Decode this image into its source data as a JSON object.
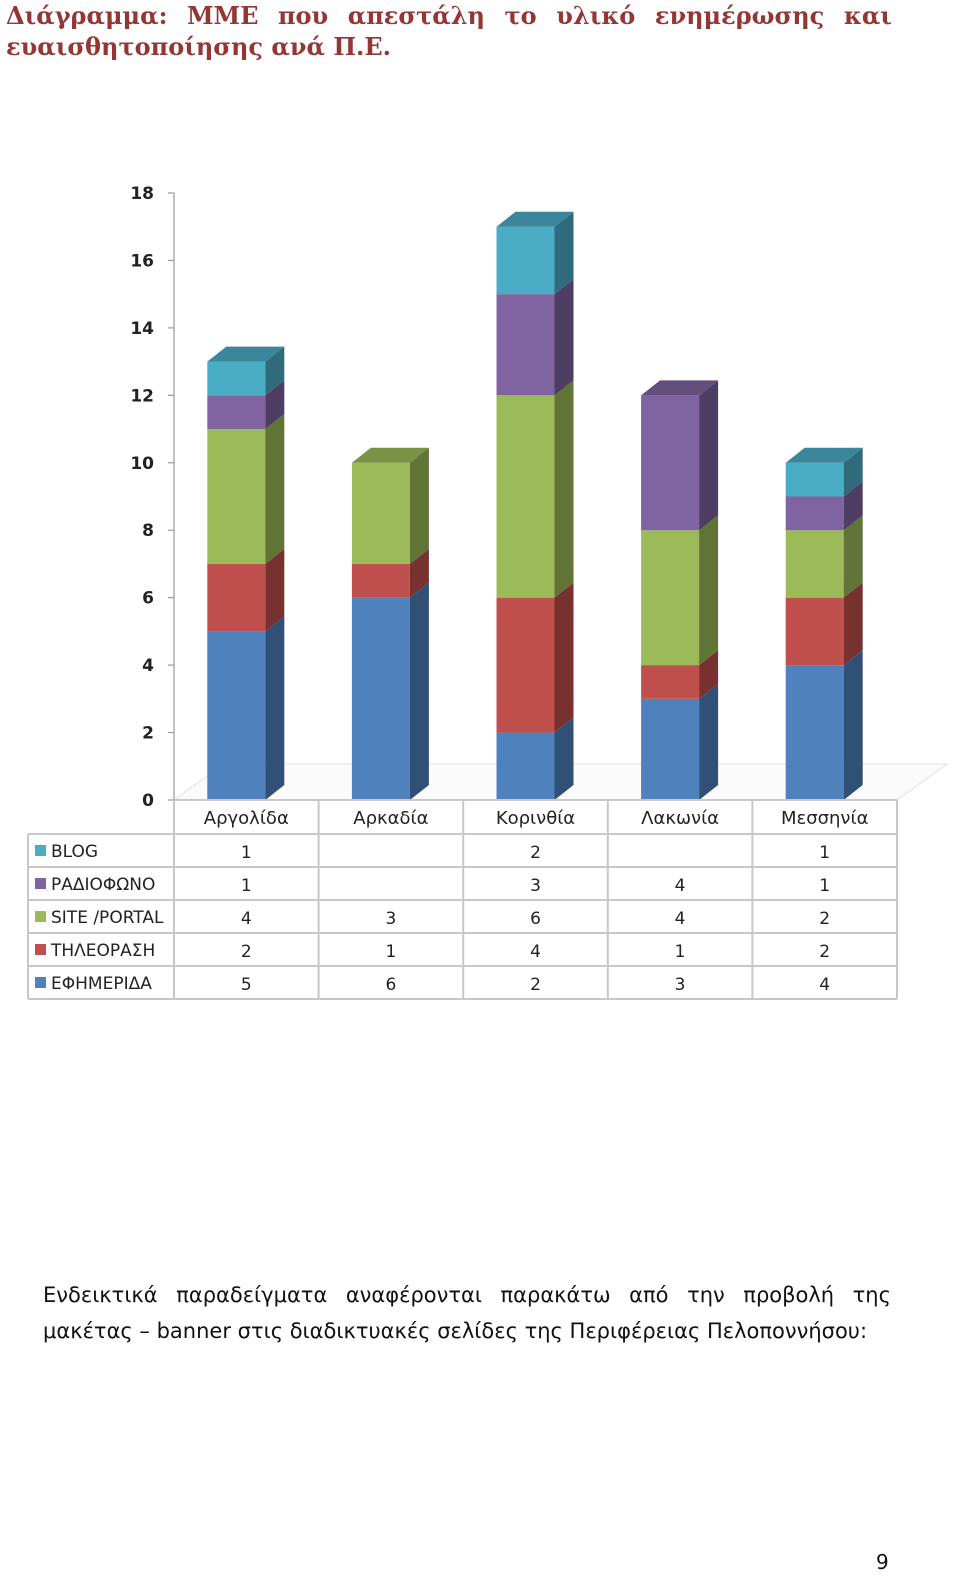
{
  "title": {
    "line1_words": [
      "Διάγραμμα:",
      "ΜΜΕ",
      "που",
      "απεστάλη",
      "το",
      "υλικό",
      "ενημέρωσης",
      "και"
    ],
    "line2": "ευαισθητοποίησης ανά Π.Ε."
  },
  "chart_data": {
    "type": "bar",
    "stacked": true,
    "three_d": true,
    "categories": [
      "Αργολίδα",
      "Αρκαδία",
      "Κορινθία",
      "Λακωνία",
      "Μεσσηνία"
    ],
    "series": [
      {
        "name": "ΕΦΗΜΕΡΙΔΑ",
        "color": "#4F81BD",
        "values": [
          5,
          6,
          2,
          3,
          4
        ]
      },
      {
        "name": "ΤΗΛΕΟΡΑΣΗ",
        "color": "#C0504D",
        "values": [
          2,
          1,
          4,
          1,
          2
        ]
      },
      {
        "name": "SITE /PORTAL",
        "color": "#9BBB59",
        "values": [
          4,
          3,
          6,
          4,
          2
        ]
      },
      {
        "name": "ΡΑΔΙΟΦΩΝΟ",
        "color": "#8064A2",
        "values": [
          1,
          null,
          3,
          4,
          1
        ]
      },
      {
        "name": "BLOG",
        "color": "#4BACC6",
        "values": [
          1,
          null,
          2,
          null,
          1
        ]
      }
    ],
    "ylim": [
      0,
      18
    ],
    "yticks": [
      0,
      2,
      4,
      6,
      8,
      10,
      12,
      14,
      16,
      18
    ],
    "data_table": true,
    "grid": false,
    "title": "",
    "xlabel": "",
    "ylabel": ""
  },
  "paragraph": {
    "line1_words": [
      "Ενδεικτικά",
      "παραδείγματα",
      "αναφέρονται",
      "παρακάτω",
      "από",
      "την",
      "προβολή",
      "της"
    ],
    "line2": "μακέτας – banner στις διαδικτυακές σελίδες της Περιφέρειας Πελοποννήσου:"
  },
  "page_number": "9"
}
